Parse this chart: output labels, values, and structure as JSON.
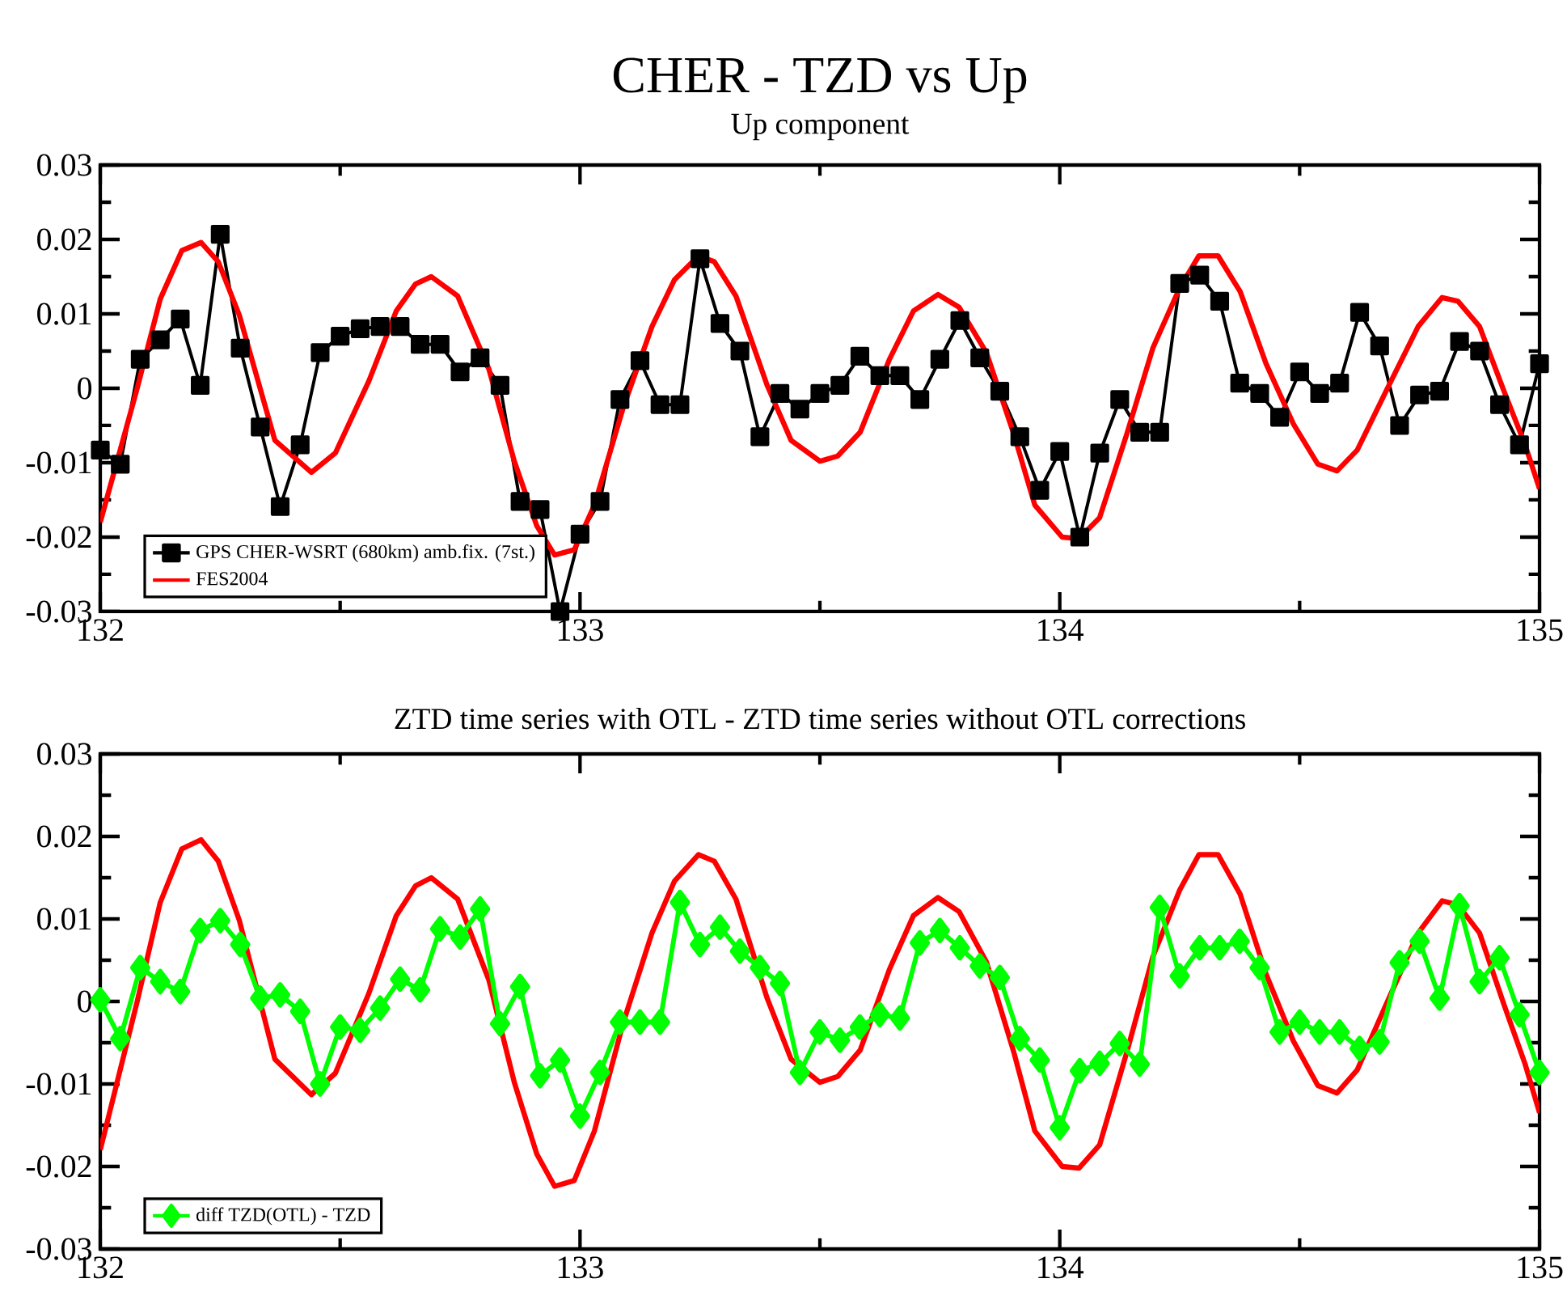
{
  "chart_data": [
    {
      "type": "line",
      "title": "CHER - TZD vs Up",
      "subtitle": "Up component",
      "xlim": [
        132,
        135
      ],
      "xticks": [
        132,
        {
          "value": 132.5,
          "label": null
        },
        133,
        {
          "value": 133.5,
          "label": null
        },
        134,
        {
          "value": 134.5,
          "label": null
        },
        135
      ],
      "ylim": [
        -0.03,
        0.03
      ],
      "yticks": [
        -0.03,
        {
          "value": -0.025,
          "label": null
        },
        -0.02,
        {
          "value": -0.015,
          "label": null
        },
        -0.01,
        {
          "value": -0.005,
          "label": null
        },
        0,
        {
          "value": 0.005,
          "label": null
        },
        0.01,
        {
          "value": 0.015,
          "label": null
        },
        0.02,
        {
          "value": 0.025,
          "label": null
        },
        0.03
      ],
      "legend": "bottom left",
      "series": [
        {
          "name": "GPS CHER-WSRT (680km) amb.fix. (7st.)",
          "color": "#000000",
          "marker": "square",
          "x": [
            132,
            132.0417,
            132.0833,
            132.125,
            132.1667,
            132.2083,
            132.25,
            132.2917,
            132.3333,
            132.375,
            132.4167,
            132.4583,
            132.5,
            132.5417,
            132.5833,
            132.625,
            132.6667,
            132.7083,
            132.75,
            132.7917,
            132.8333,
            132.875,
            132.9167,
            132.9583,
            133,
            133.0417,
            133.0833,
            133.125,
            133.1667,
            133.2083,
            133.25,
            133.2917,
            133.3333,
            133.375,
            133.4167,
            133.4583,
            133.5,
            133.5417,
            133.5833,
            133.625,
            133.6667,
            133.7083,
            133.75,
            133.7917,
            133.8333,
            133.875,
            133.9167,
            133.9583,
            134,
            134.0417,
            134.0833,
            134.125,
            134.1667,
            134.2083,
            134.25,
            134.2917,
            134.3333,
            134.375,
            134.4167,
            134.4583,
            134.5,
            134.5417,
            134.5833,
            134.625,
            134.6667,
            134.7083,
            134.75,
            134.7917,
            134.8333,
            134.875,
            134.9167,
            134.9583,
            135
          ],
          "values": [
            -0.0083,
            -0.0102,
            0.0039,
            0.0065,
            0.0093,
            0.0004,
            0.0207,
            0.0054,
            -0.0052,
            -0.0159,
            -0.0076,
            0.0048,
            0.007,
            0.008,
            0.0083,
            0.0083,
            0.0059,
            0.0059,
            0.0022,
            0.0041,
            0.0004,
            -0.0152,
            -0.0163,
            -0.03,
            -0.0196,
            -0.0152,
            -0.0015,
            0.0037,
            -0.0022,
            -0.0022,
            0.0174,
            0.0087,
            0.005,
            -0.0065,
            -0.0007,
            -0.0028,
            -0.0007,
            0.0004,
            0.0043,
            0.0017,
            0.0017,
            -0.0015,
            0.0039,
            0.0091,
            0.0041,
            -0.0004,
            -0.0065,
            -0.0137,
            -0.0085,
            -0.02,
            -0.0087,
            -0.0015,
            -0.0059,
            -0.0059,
            0.0141,
            0.0152,
            0.0117,
            0.0007,
            -0.0007,
            -0.0039,
            0.0022,
            -0.0007,
            0.0007,
            0.0102,
            0.0057,
            -0.005,
            -0.0009,
            -0.0004,
            0.0063,
            0.005,
            -0.0022,
            -0.0076,
            0.0033
          ]
        },
        {
          "name": "FES2004",
          "color": "#ff0000",
          "marker": "none",
          "x": [
            132.0,
            132.077,
            132.125,
            132.17,
            132.21,
            132.246,
            132.29,
            132.364,
            132.44,
            132.49,
            132.56,
            132.617,
            132.657,
            132.69,
            132.745,
            132.81,
            132.863,
            132.91,
            132.947,
            132.988,
            133.03,
            133.09,
            133.15,
            133.197,
            133.247,
            133.28,
            133.325,
            133.39,
            133.44,
            133.5,
            133.537,
            133.584,
            133.645,
            133.695,
            133.746,
            133.79,
            133.847,
            133.904,
            133.948,
            134.005,
            134.04,
            134.083,
            134.14,
            134.194,
            134.25,
            134.29,
            134.33,
            134.376,
            134.43,
            134.487,
            134.538,
            134.578,
            134.62,
            134.68,
            134.747,
            134.797,
            134.83,
            134.875,
            134.926,
            134.97,
            135.0
          ],
          "values": [
            -0.018,
            0.0,
            0.012,
            0.0185,
            0.0196,
            0.017,
            0.0098,
            -0.007,
            -0.0113,
            -0.0087,
            0.001,
            0.0104,
            0.014,
            0.015,
            0.0124,
            0.0026,
            -0.0098,
            -0.0185,
            -0.0224,
            -0.0217,
            -0.0157,
            -0.0026,
            0.0083,
            0.0146,
            0.0178,
            0.017,
            0.0124,
            0.0004,
            -0.007,
            -0.0098,
            -0.0091,
            -0.0059,
            0.0039,
            0.0104,
            0.0126,
            0.0109,
            0.0048,
            -0.0061,
            -0.0157,
            -0.02,
            -0.0202,
            -0.0174,
            -0.0061,
            0.0054,
            0.0135,
            0.0178,
            0.0178,
            0.013,
            0.0033,
            -0.0048,
            -0.0102,
            -0.0111,
            -0.0083,
            -0.0004,
            0.0083,
            0.0122,
            0.0117,
            0.0083,
            -0.0004,
            -0.0076,
            -0.0135
          ]
        }
      ]
    },
    {
      "type": "line",
      "title": "ZTD time series with OTL - ZTD time series without OTL corrections",
      "xlim": [
        132,
        135
      ],
      "xticks": [
        132,
        {
          "value": 132.5,
          "label": null
        },
        133,
        {
          "value": 133.5,
          "label": null
        },
        134,
        {
          "value": 134.5,
          "label": null
        },
        135
      ],
      "ylim": [
        -0.03,
        0.03
      ],
      "yticks": [
        -0.03,
        {
          "value": -0.025,
          "label": null
        },
        -0.02,
        {
          "value": -0.015,
          "label": null
        },
        -0.01,
        {
          "value": -0.005,
          "label": null
        },
        0,
        {
          "value": 0.005,
          "label": null
        },
        0.01,
        {
          "value": 0.015,
          "label": null
        },
        0.02,
        {
          "value": 0.025,
          "label": null
        },
        0.03
      ],
      "legend": "bottom left",
      "series": [
        {
          "color": "#ff0000",
          "marker": "none",
          "x": [
            132.0,
            132.077,
            132.125,
            132.17,
            132.21,
            132.246,
            132.29,
            132.364,
            132.44,
            132.49,
            132.56,
            132.617,
            132.657,
            132.69,
            132.745,
            132.81,
            132.863,
            132.91,
            132.947,
            132.988,
            133.03,
            133.09,
            133.15,
            133.197,
            133.247,
            133.28,
            133.325,
            133.39,
            133.44,
            133.5,
            133.537,
            133.584,
            133.645,
            133.695,
            133.746,
            133.79,
            133.847,
            133.904,
            133.948,
            134.005,
            134.04,
            134.083,
            134.14,
            134.194,
            134.25,
            134.29,
            134.33,
            134.376,
            134.43,
            134.487,
            134.538,
            134.578,
            134.62,
            134.68,
            134.747,
            134.797,
            134.83,
            134.875,
            134.926,
            134.97,
            135.0
          ],
          "values": [
            -0.018,
            0.0,
            0.012,
            0.0185,
            0.0196,
            0.017,
            0.0098,
            -0.007,
            -0.0113,
            -0.0087,
            0.001,
            0.0104,
            0.014,
            0.015,
            0.0124,
            0.0026,
            -0.0098,
            -0.0185,
            -0.0224,
            -0.0217,
            -0.0157,
            -0.0026,
            0.0083,
            0.0146,
            0.0178,
            0.017,
            0.0124,
            0.0004,
            -0.007,
            -0.0098,
            -0.0091,
            -0.0059,
            0.0039,
            0.0104,
            0.0126,
            0.0109,
            0.0048,
            -0.0061,
            -0.0157,
            -0.02,
            -0.0202,
            -0.0174,
            -0.0061,
            0.0054,
            0.0135,
            0.0178,
            0.0178,
            0.013,
            0.0033,
            -0.0048,
            -0.0102,
            -0.0111,
            -0.0083,
            -0.0004,
            0.0083,
            0.0122,
            0.0117,
            0.0083,
            -0.0004,
            -0.0076,
            -0.0135
          ]
        },
        {
          "name": "diff TZD(OTL) - TZD",
          "color": "#00ff00",
          "marker": "diamond",
          "x": [
            132,
            132.0417,
            132.0833,
            132.125,
            132.1667,
            132.2083,
            132.25,
            132.2917,
            132.3333,
            132.375,
            132.4167,
            132.4583,
            132.5,
            132.5417,
            132.5833,
            132.625,
            132.6667,
            132.7083,
            132.75,
            132.7917,
            132.8333,
            132.875,
            132.9167,
            132.9583,
            133,
            133.0417,
            133.0833,
            133.125,
            133.1667,
            133.2083,
            133.25,
            133.2917,
            133.3333,
            133.375,
            133.4167,
            133.4583,
            133.5,
            133.5417,
            133.5833,
            133.625,
            133.6667,
            133.7083,
            133.75,
            133.7917,
            133.8333,
            133.875,
            133.9167,
            133.9583,
            134,
            134.0417,
            134.0833,
            134.125,
            134.1667,
            134.2083,
            134.25,
            134.2917,
            134.3333,
            134.375,
            134.4167,
            134.4583,
            134.5,
            134.5417,
            134.5833,
            134.625,
            134.6667,
            134.7083,
            134.75,
            134.7917,
            134.8333,
            134.875,
            134.9167,
            134.9583,
            135
          ],
          "values": [
            0.0002,
            -0.0045,
            0.0041,
            0.0024,
            0.0012,
            0.0086,
            0.0098,
            0.0069,
            0.0004,
            0.0008,
            -0.0012,
            -0.01,
            -0.0031,
            -0.0035,
            -0.0008,
            0.0027,
            0.0014,
            0.0088,
            0.0078,
            0.0112,
            -0.0027,
            0.0018,
            -0.009,
            -0.0071,
            -0.0139,
            -0.0086,
            -0.0025,
            -0.0025,
            -0.0025,
            0.012,
            0.0069,
            0.009,
            0.0061,
            0.0041,
            0.0022,
            -0.0086,
            -0.0037,
            -0.0047,
            -0.0031,
            -0.0016,
            -0.002,
            0.0071,
            0.0086,
            0.0065,
            0.0043,
            0.0029,
            -0.0045,
            -0.0071,
            -0.0153,
            -0.0084,
            -0.0075,
            -0.0051,
            -0.0076,
            0.0114,
            0.0031,
            0.0065,
            0.0065,
            0.0073,
            0.0041,
            -0.0037,
            -0.0025,
            -0.0037,
            -0.0037,
            -0.0057,
            -0.0049,
            0.0047,
            0.0073,
            0.0004,
            0.0116,
            0.0024,
            0.0053,
            -0.0016,
            -0.0086
          ]
        }
      ]
    }
  ]
}
